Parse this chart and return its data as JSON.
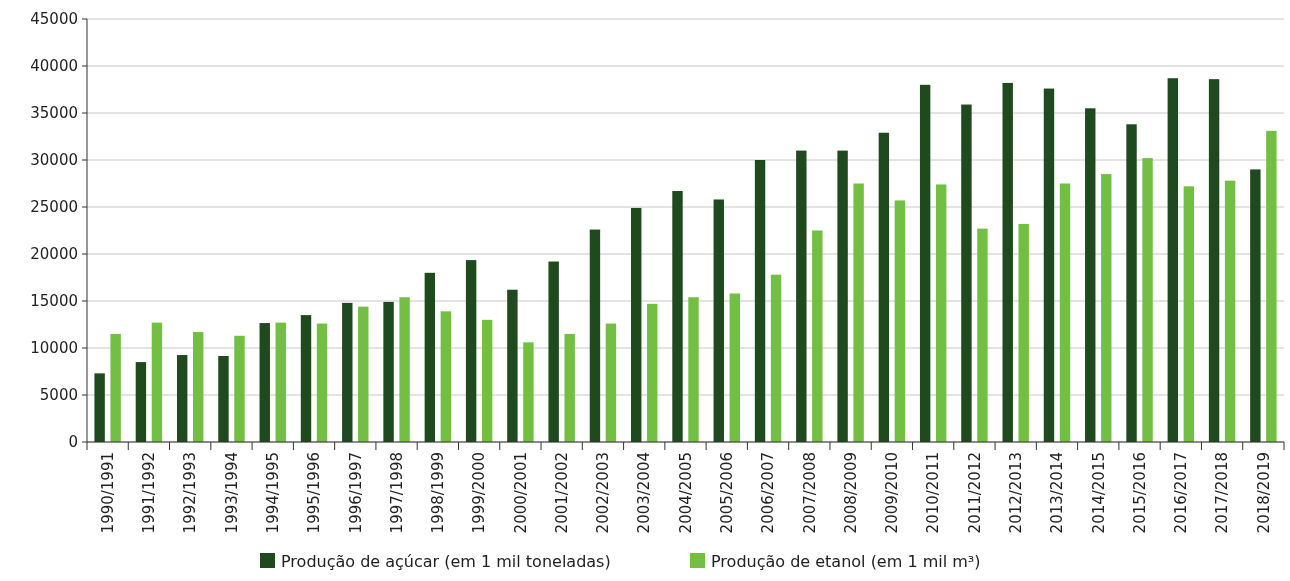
{
  "chart_data": {
    "type": "bar",
    "categories": [
      "1990/1991",
      "1991/1992",
      "1992/1993",
      "1993/1994",
      "1994/1995",
      "1995/1996",
      "1996/1997",
      "1997/1998",
      "1998/1999",
      "1999/2000",
      "2000/2001",
      "2001/2002",
      "2002/2003",
      "2003/2004",
      "2004/2005",
      "2005/2006",
      "2006/2007",
      "2007/2008",
      "2008/2009",
      "2009/2010",
      "2010/2011",
      "2011/2012",
      "2012/2013",
      "2013/2014",
      "2014/2015",
      "2015/2016",
      "2016/2017",
      "2017/2018",
      "2018/2019"
    ],
    "series": [
      {
        "name": "Produção de açúcar (em 1 mil toneladas)",
        "color": "#1e4a1e",
        "values": [
          7300,
          8500,
          9250,
          9150,
          12650,
          13500,
          14800,
          14900,
          18000,
          19350,
          16200,
          19200,
          22600,
          24900,
          26700,
          25800,
          30000,
          31000,
          31000,
          32900,
          38000,
          35900,
          38200,
          37600,
          35500,
          33800,
          38700,
          38600,
          29000
        ]
      },
      {
        "name": "Produção de etanol (em 1 mil m³)",
        "color": "#72bf44",
        "values": [
          11500,
          12700,
          11700,
          11300,
          12700,
          12600,
          14400,
          15400,
          13900,
          13000,
          10600,
          11500,
          12600,
          14700,
          15400,
          15800,
          17800,
          22500,
          27500,
          25700,
          27400,
          22700,
          23200,
          27500,
          28500,
          30200,
          27200,
          27800,
          33100
        ]
      }
    ],
    "ylim": [
      0,
      45000
    ],
    "yticks": [
      0,
      5000,
      10000,
      15000,
      20000,
      25000,
      30000,
      35000,
      40000,
      45000
    ],
    "grid": "y",
    "legend": "bottom"
  }
}
